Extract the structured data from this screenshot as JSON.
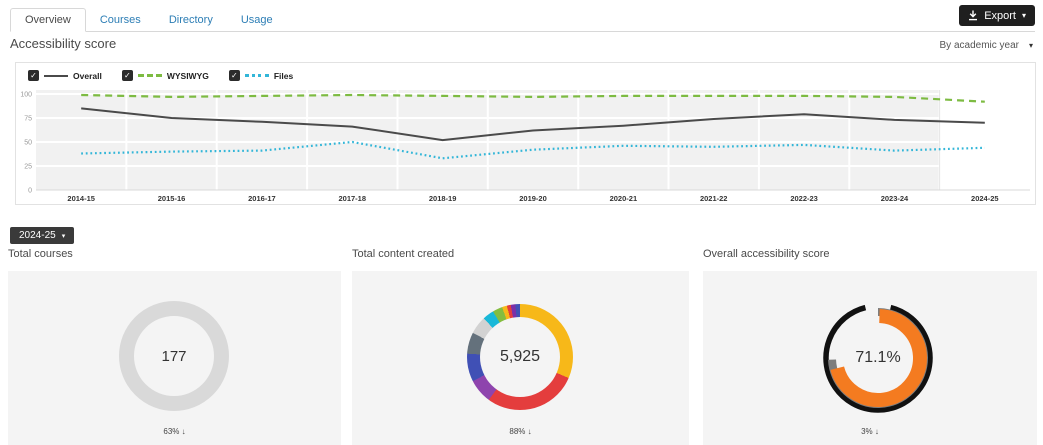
{
  "tabs": {
    "items": [
      {
        "label": "Overview",
        "active": true
      },
      {
        "label": "Courses",
        "active": false
      },
      {
        "label": "Directory",
        "active": false
      },
      {
        "label": "Usage",
        "active": false
      }
    ]
  },
  "toolbar": {
    "export_label": "Export",
    "caret": "▾"
  },
  "header": {
    "title": "Accessibility score",
    "filter_label": "By academic year",
    "caret": "▾"
  },
  "year_selector": {
    "label": "2024-25",
    "caret": "▾"
  },
  "legend_checkmark": "✓",
  "colors": {
    "accent_blue": "#2d7eb5",
    "dark_button": "#1f1f1f",
    "card_bg": "#f4f4f4",
    "overall_line": "#4a4a4a",
    "wysiwyg_line": "#7dbb42",
    "files_line": "#33b6d8",
    "score_orange": "#f47b20"
  },
  "chart_data": [
    {
      "type": "line",
      "title": "Accessibility score",
      "x": [
        "2014-15",
        "2015-16",
        "2016-17",
        "2017-18",
        "2018-19",
        "2019-20",
        "2020-21",
        "2021-22",
        "2022-23",
        "2023-24",
        "2024-25"
      ],
      "ylim": [
        0,
        100
      ],
      "yticks": [
        0,
        25,
        50,
        75,
        100
      ],
      "grid": true,
      "legend_position": "top",
      "highlight_band": "2024-25",
      "series": [
        {
          "name": "Overall",
          "color": "#4a4a4a",
          "style": "solid",
          "checked": true,
          "values": [
            85,
            75,
            71,
            66,
            52,
            62,
            67,
            74,
            79,
            73,
            70
          ]
        },
        {
          "name": "WYSIWYG",
          "color": "#7dbb42",
          "style": "dashed",
          "checked": true,
          "values": [
            99,
            97,
            98,
            99,
            98,
            97,
            98,
            98,
            98,
            97,
            92
          ]
        },
        {
          "name": "Files",
          "color": "#33b6d8",
          "style": "dotted",
          "checked": true,
          "values": [
            38,
            40,
            41,
            50,
            33,
            42,
            46,
            45,
            47,
            41,
            44
          ]
        }
      ]
    },
    {
      "type": "pie",
      "title": "Total courses",
      "center_label": "177",
      "footer": "63% ↓",
      "segments": [
        {
          "label": "all-courses",
          "color": "#d9d9d9",
          "value": 100
        }
      ]
    },
    {
      "type": "pie",
      "title": "Total content created",
      "center_label": "5,925",
      "footer": "88% ↓",
      "segments": [
        {
          "label": "yellow",
          "color": "#f7b819",
          "value": 31.5
        },
        {
          "label": "red",
          "color": "#e43d3d",
          "value": 28.5
        },
        {
          "label": "purple",
          "color": "#8e44ad",
          "value": 7.5
        },
        {
          "label": "indigo",
          "color": "#4050b5",
          "value": 8.5
        },
        {
          "label": "slate",
          "color": "#64717c",
          "value": 6.5
        },
        {
          "label": "light-gray",
          "color": "#d2d2d2",
          "value": 5.5
        },
        {
          "label": "cyan",
          "color": "#19b8d8",
          "value": 3.5
        },
        {
          "label": "green",
          "color": "#84bd3f",
          "value": 3.0
        },
        {
          "label": "yellow-2",
          "color": "#f7b819",
          "value": 1.5
        },
        {
          "label": "red-2",
          "color": "#e43d3d",
          "value": 1.2
        },
        {
          "label": "purple-2",
          "color": "#7b2fa8",
          "value": 1.4
        },
        {
          "label": "indigo-2",
          "color": "#4050b5",
          "value": 1.4
        }
      ]
    },
    {
      "type": "gauge",
      "title": "Overall accessibility score",
      "center_label": "71.1%",
      "footer": "3% ↓",
      "arcs": [
        {
          "name": "outer-ring",
          "color": "#111111",
          "start_deg": 14,
          "end_deg": 346,
          "radius": 52,
          "thickness": 5.5
        },
        {
          "name": "previous-score",
          "color": "#7d7d7d",
          "start_deg": 0,
          "end_deg": 268,
          "radius": 46,
          "thickness": 8
        },
        {
          "name": "current-score",
          "color": "#f47b20",
          "start_deg": 2,
          "end_deg": 256,
          "radius": 42,
          "thickness": 14
        }
      ],
      "value_percent": 71.1
    }
  ]
}
